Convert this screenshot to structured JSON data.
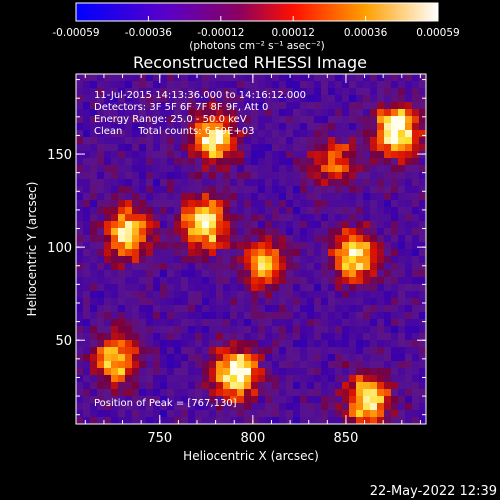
{
  "colorbar": {
    "ticks": [
      "-0.00059",
      "-0.00036",
      "-0.00012",
      "0.00012",
      "0.00036",
      "0.00059"
    ],
    "unit_label": "(photons cm⁻² s⁻¹ asec⁻²)"
  },
  "title": "Reconstructed RHESSI Image",
  "annotations": {
    "time_range": "11-Jul-2015 14:13:36.000 to 14:16:12.000",
    "detectors": "Detectors: 3F 5F 6F 7F 8F 9F, Att 0",
    "energy_range": "Energy Range: 25.0 - 50.0 keV",
    "clean_counts": "Clean     Total counts: 6.59E+03",
    "peak_position": "Position of Peak = [767,130]"
  },
  "footer": {
    "timestamp": "22-May-2022 12:39"
  },
  "chart_data": {
    "type": "heatmap",
    "title": "Reconstructed RHESSI Image",
    "xlabel": "Heliocentric X (arcsec)",
    "ylabel": "Heliocentric Y (arcsec)",
    "xlim": [
      705,
      893
    ],
    "ylim": [
      5,
      193
    ],
    "x_ticks": [
      750,
      800,
      850
    ],
    "y_ticks": [
      50,
      100,
      150
    ],
    "colorbar_range": [
      -0.00059,
      0.00059
    ],
    "colormap": "blue-purple-red-yellow-white",
    "sources": [
      {
        "x": 877,
        "y": 162,
        "peak": 1.0
      },
      {
        "x": 779,
        "y": 158,
        "peak": 0.9
      },
      {
        "x": 774,
        "y": 113,
        "peak": 0.95
      },
      {
        "x": 733,
        "y": 108,
        "peak": 0.85
      },
      {
        "x": 791,
        "y": 32,
        "peak": 1.0
      },
      {
        "x": 855,
        "y": 95,
        "peak": 0.85
      },
      {
        "x": 862,
        "y": 18,
        "peak": 0.9
      },
      {
        "x": 727,
        "y": 40,
        "peak": 0.8
      },
      {
        "x": 806,
        "y": 90,
        "peak": 0.7
      },
      {
        "x": 843,
        "y": 145,
        "peak": 0.6
      }
    ]
  }
}
